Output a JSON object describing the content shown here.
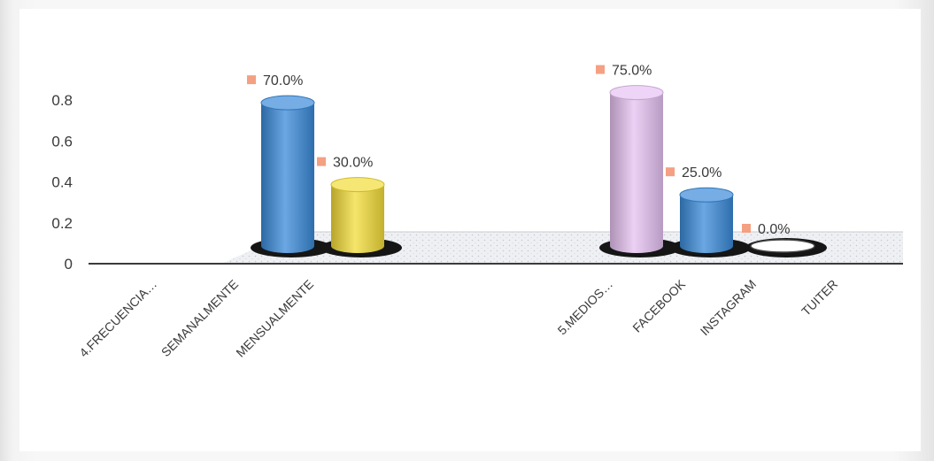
{
  "chart_data": {
    "type": "bar",
    "categories": [
      "4.FRECUENCIA…",
      "SEMANALMENTE",
      "MENSUALMENTE",
      "5.MEDIOS…",
      "FACEBOOK",
      "INSTAGRAM",
      "TUITER"
    ],
    "values": [
      null,
      0.7,
      0.3,
      null,
      0.75,
      0.25,
      0.0
    ],
    "data_labels": [
      "",
      "70.0%",
      "30.0%",
      "",
      "75.0%",
      "25.0%",
      "0.0%"
    ],
    "bar_colors": [
      "",
      "#3a8ad8",
      "#f2dc38",
      "",
      "#e6c2f2",
      "#3a8ad8",
      "#ffffff"
    ],
    "marker_color": "#f4a082",
    "yticks": [
      "0",
      "0.2",
      "0.4",
      "0.6",
      "0.8"
    ],
    "ylim": [
      0,
      0.8
    ],
    "grid": false,
    "legend": "none",
    "style": "3d-cylinder"
  }
}
